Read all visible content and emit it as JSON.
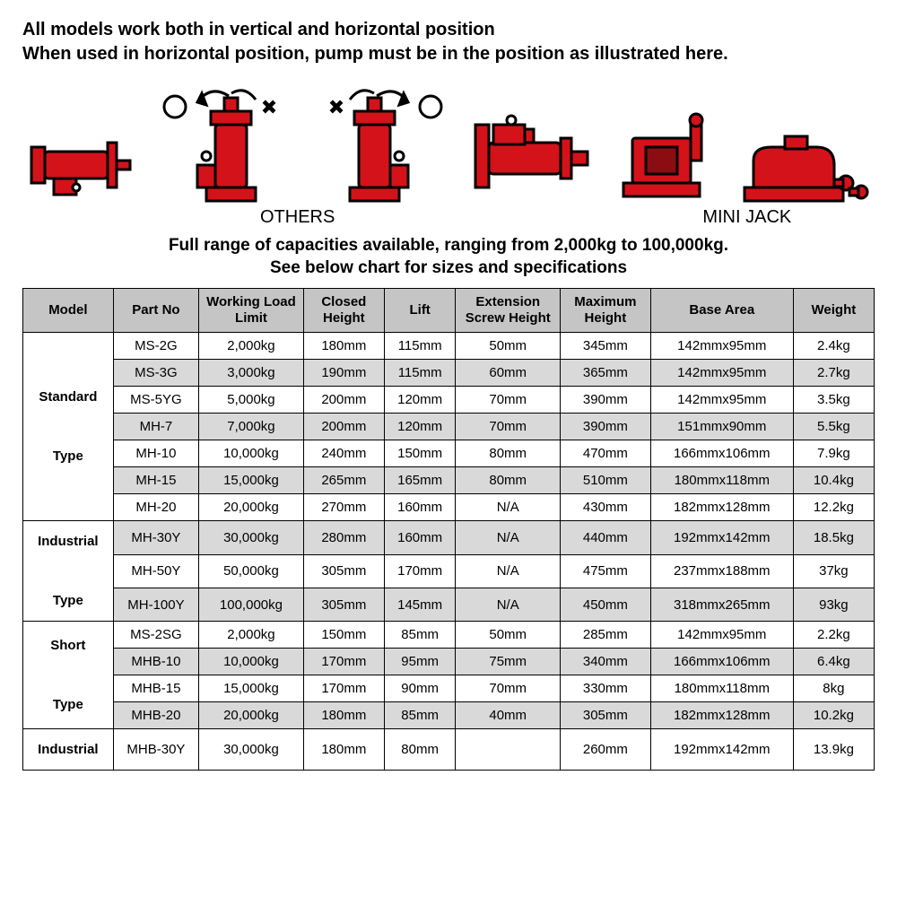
{
  "intro_line1": "All models work both in vertical and horizontal position",
  "intro_line2": "When used in horizontal position, pump must be in the position as illustrated here.",
  "label_others": "OTHERS",
  "label_mini": "MINI JACK",
  "capacity_line1": "Full range of capacities available, ranging from 2,000kg to 100,000kg.",
  "capacity_line2": "See below chart for sizes and specifications",
  "diagram": {
    "jack_color": "#d4121a",
    "outline_color": "#000000",
    "symbol_ok": "○",
    "symbol_ng": "×"
  },
  "table": {
    "headers": [
      "Model",
      "Part No",
      "Working Load Limit",
      "Closed Height",
      "Lift",
      "Extension Screw Height",
      "Maximum Height",
      "Base Area",
      "Weight"
    ],
    "col_widths": [
      "95px",
      "90px",
      "110px",
      "85px",
      "75px",
      "110px",
      "95px",
      "150px",
      "85px"
    ],
    "header_bg": "#c5c5c5",
    "row_shade_bg": "#d9d9d9",
    "border_color": "#000000",
    "groups": [
      {
        "label": "Standard\nType",
        "rows": [
          {
            "shade": false,
            "cells": [
              "MS-2G",
              "2,000kg",
              "180mm",
              "115mm",
              "50mm",
              "345mm",
              "142mmx95mm",
              "2.4kg"
            ]
          },
          {
            "shade": true,
            "cells": [
              "MS-3G",
              "3,000kg",
              "190mm",
              "115mm",
              "60mm",
              "365mm",
              "142mmx95mm",
              "2.7kg"
            ]
          },
          {
            "shade": false,
            "cells": [
              "MS-5YG",
              "5,000kg",
              "200mm",
              "120mm",
              "70mm",
              "390mm",
              "142mmx95mm",
              "3.5kg"
            ]
          },
          {
            "shade": true,
            "cells": [
              "MH-7",
              "7,000kg",
              "200mm",
              "120mm",
              "70mm",
              "390mm",
              "151mmx90mm",
              "5.5kg"
            ]
          },
          {
            "shade": false,
            "cells": [
              "MH-10",
              "10,000kg",
              "240mm",
              "150mm",
              "80mm",
              "470mm",
              "166mmx106mm",
              "7.9kg"
            ]
          },
          {
            "shade": true,
            "cells": [
              "MH-15",
              "15,000kg",
              "265mm",
              "165mm",
              "80mm",
              "510mm",
              "180mmx118mm",
              "10.4kg"
            ]
          },
          {
            "shade": false,
            "cells": [
              "MH-20",
              "20,000kg",
              "270mm",
              "160mm",
              "N/A",
              "430mm",
              "182mmx128mm",
              "12.2kg"
            ]
          }
        ]
      },
      {
        "label": "Industrial\nType",
        "rows": [
          {
            "shade": true,
            "cells": [
              "MH-30Y",
              "30,000kg",
              "280mm",
              "160mm",
              "N/A",
              "440mm",
              "192mmx142mm",
              "18.5kg"
            ]
          },
          {
            "shade": false,
            "cells": [
              "MH-50Y",
              "50,000kg",
              "305mm",
              "170mm",
              "N/A",
              "475mm",
              "237mmx188mm",
              "37kg"
            ]
          },
          {
            "shade": true,
            "cells": [
              "MH-100Y",
              "100,000kg",
              "305mm",
              "145mm",
              "N/A",
              "450mm",
              "318mmx265mm",
              "93kg"
            ]
          }
        ]
      },
      {
        "label": "Short\nType",
        "rows": [
          {
            "shade": false,
            "cells": [
              "MS-2SG",
              "2,000kg",
              "150mm",
              "85mm",
              "50mm",
              "285mm",
              "142mmx95mm",
              "2.2kg"
            ]
          },
          {
            "shade": true,
            "cells": [
              "MHB-10",
              "10,000kg",
              "170mm",
              "95mm",
              "75mm",
              "340mm",
              "166mmx106mm",
              "6.4kg"
            ]
          },
          {
            "shade": false,
            "cells": [
              "MHB-15",
              "15,000kg",
              "170mm",
              "90mm",
              "70mm",
              "330mm",
              "180mmx118mm",
              "8kg"
            ]
          },
          {
            "shade": true,
            "cells": [
              "MHB-20",
              "20,000kg",
              "180mm",
              "85mm",
              "40mm",
              "305mm",
              "182mmx128mm",
              "10.2kg"
            ]
          }
        ]
      },
      {
        "label": "Industrial",
        "rows": [
          {
            "shade": false,
            "cells": [
              "MHB-30Y",
              "30,000kg",
              "180mm",
              "80mm",
              "",
              "260mm",
              "192mmx142mm",
              "13.9kg"
            ]
          }
        ]
      }
    ]
  }
}
